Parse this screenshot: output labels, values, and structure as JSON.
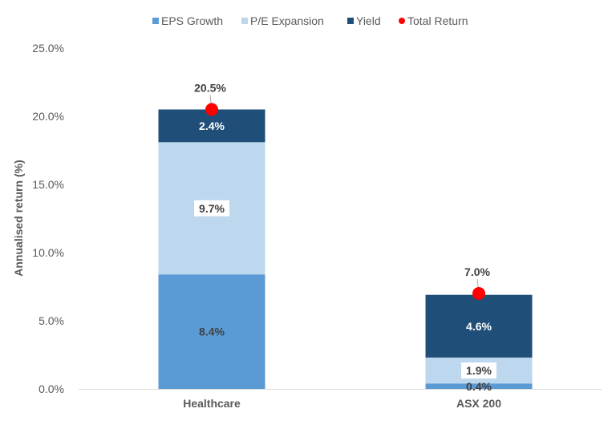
{
  "chart_data": {
    "type": "bar",
    "stacked": true,
    "categories": [
      "Healthcare",
      "ASX 200"
    ],
    "series": [
      {
        "name": "EPS Growth",
        "values": [
          8.4,
          0.4
        ],
        "labels": [
          "8.4%",
          "0.4%"
        ],
        "color": "#5B9BD5"
      },
      {
        "name": "P/E Expansion",
        "values": [
          9.7,
          1.9
        ],
        "labels": [
          "9.7%",
          "1.9%"
        ],
        "color": "#BDD7EE"
      },
      {
        "name": "Yield",
        "values": [
          2.4,
          4.6
        ],
        "labels": [
          "2.4%",
          "4.6%"
        ],
        "color": "#1F4E79"
      }
    ],
    "total": {
      "name": "Total Return",
      "values": [
        20.5,
        7.0
      ],
      "labels": [
        "20.5%",
        "7.0%"
      ],
      "color": "#FF0000"
    },
    "title": "",
    "xlabel": "",
    "ylabel": "Annualised return (%)",
    "ylim": [
      0,
      25
    ],
    "yticks": [
      "0.0%",
      "5.0%",
      "10.0%",
      "15.0%",
      "20.0%",
      "25.0%"
    ],
    "grid": false,
    "legend_position": "top"
  }
}
